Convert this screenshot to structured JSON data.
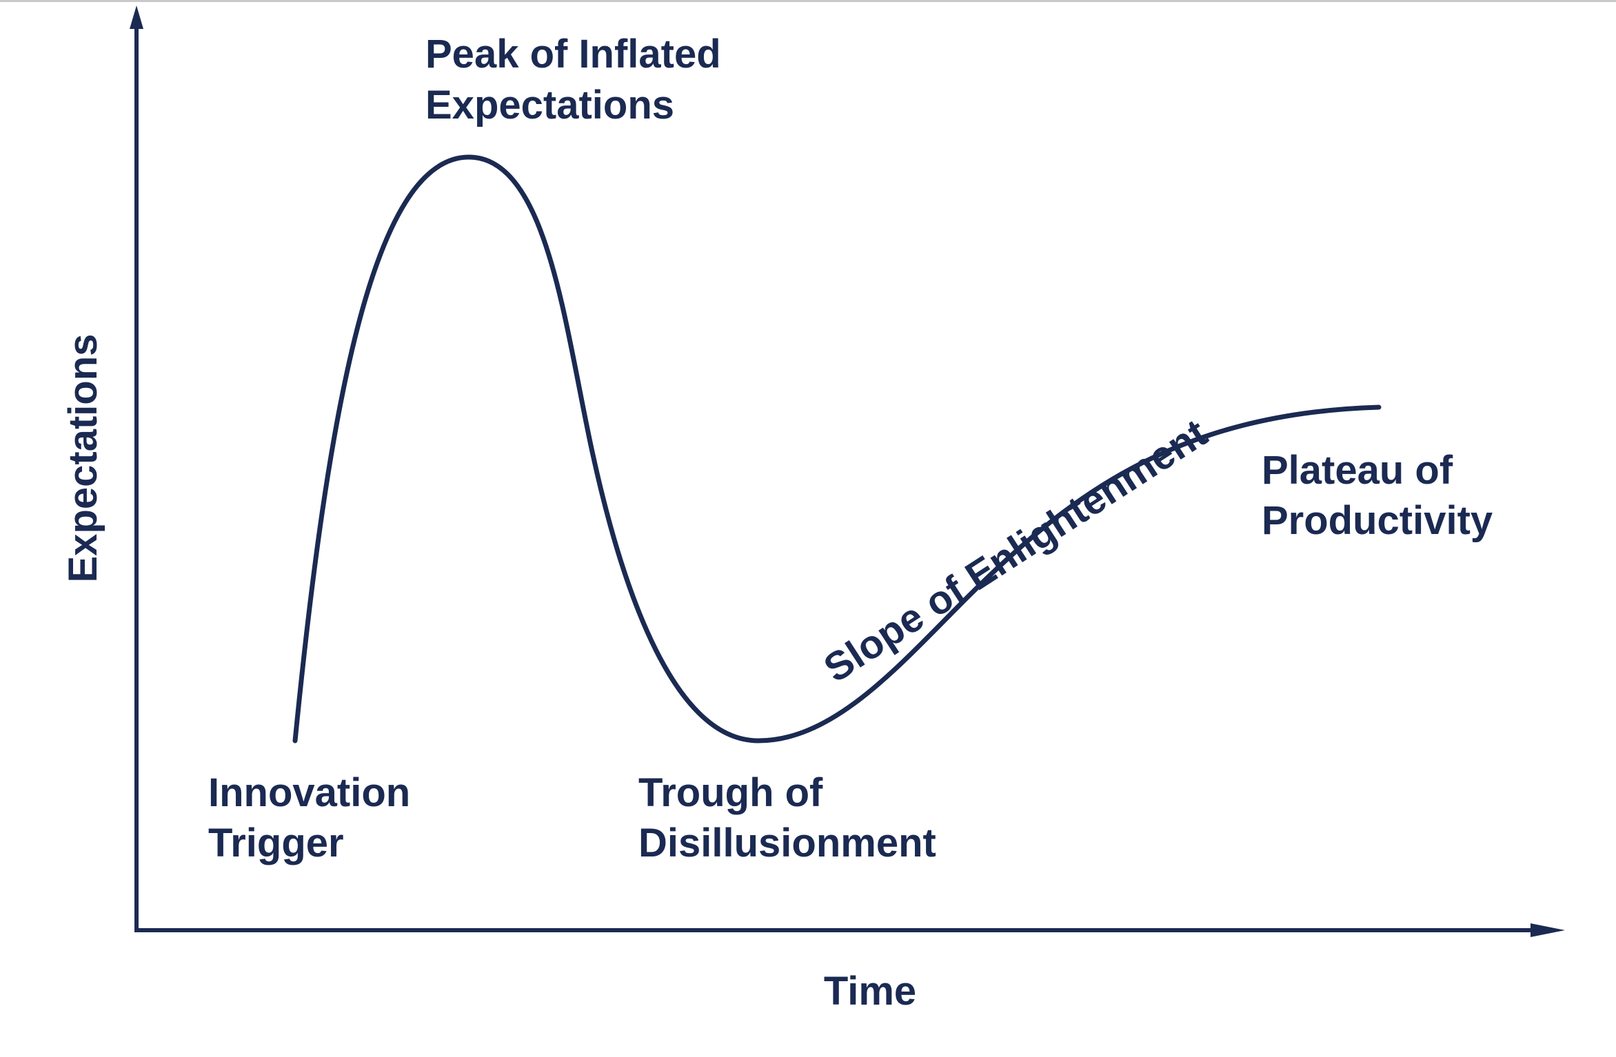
{
  "diagram": {
    "axes": {
      "y_label": "Expectations",
      "x_label": "Time"
    },
    "phases": {
      "innovation_trigger": [
        "Innovation",
        "Trigger"
      ],
      "peak": [
        "Peak of Inflated",
        "Expectations"
      ],
      "trough": [
        "Trough of",
        "Disillusionment"
      ],
      "slope": "Slope of Enlightenment",
      "plateau": [
        "Plateau of",
        "Productivity"
      ]
    },
    "colors": {
      "ink": "#1b2a52",
      "background": "#ffffff"
    }
  }
}
